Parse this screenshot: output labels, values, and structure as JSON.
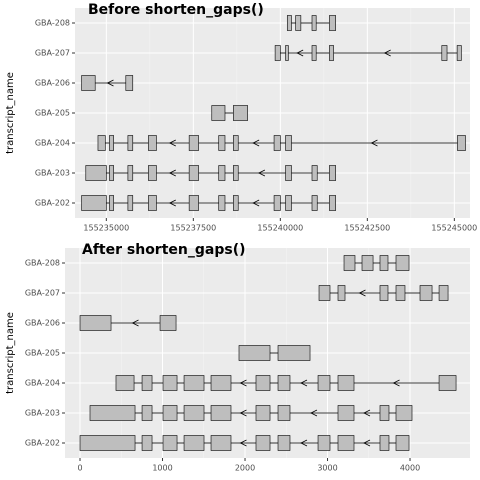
{
  "chart_data": [
    {
      "type": "transcript",
      "title": "Before shorten_gaps()",
      "ylabel": "transcript_name",
      "strand": "-",
      "categories": [
        "GBA-208",
        "GBA-207",
        "GBA-206",
        "GBA-205",
        "GBA-204",
        "GBA-203",
        "GBA-202"
      ],
      "exons": [
        [
          [
            155240200,
            155240320
          ],
          [
            155240440,
            155240590
          ],
          [
            155240910,
            155241030
          ],
          [
            155241410,
            155241590
          ]
        ],
        [
          [
            155239850,
            155240000
          ],
          [
            155240150,
            155240230
          ],
          [
            155240910,
            155241030
          ],
          [
            155241410,
            155241530
          ],
          [
            155244640,
            155244790
          ],
          [
            155245080,
            155245200
          ]
        ],
        [
          [
            155234290,
            155234680
          ],
          [
            155235560,
            155235760
          ]
        ],
        [
          [
            155238030,
            155238410
          ],
          [
            155238650,
            155239060
          ]
        ],
        [
          [
            155234760,
            155234970
          ],
          [
            155235090,
            155235210
          ],
          [
            155235620,
            155235760
          ],
          [
            155236210,
            155236440
          ],
          [
            155237380,
            155237650
          ],
          [
            155238230,
            155238410
          ],
          [
            155238650,
            155238790
          ],
          [
            155239820,
            155240000
          ],
          [
            155240150,
            155240320
          ],
          [
            155245090,
            155245320
          ]
        ],
        [
          [
            155234410,
            155235000
          ],
          [
            155235090,
            155235210
          ],
          [
            155235620,
            155235760
          ],
          [
            155236210,
            155236440
          ],
          [
            155237380,
            155237650
          ],
          [
            155238230,
            155238410
          ],
          [
            155238650,
            155238790
          ],
          [
            155240150,
            155240320
          ],
          [
            155240910,
            155241060
          ],
          [
            155241410,
            155241590
          ]
        ],
        [
          [
            155234290,
            155235000
          ],
          [
            155235090,
            155235210
          ],
          [
            155235620,
            155235760
          ],
          [
            155236210,
            155236440
          ],
          [
            155237380,
            155237650
          ],
          [
            155238230,
            155238410
          ],
          [
            155238650,
            155238790
          ],
          [
            155239820,
            155240000
          ],
          [
            155240150,
            155240320
          ],
          [
            155240910,
            155241060
          ],
          [
            155241410,
            155241590
          ]
        ]
      ],
      "xlim": [
        155234100,
        155245450
      ],
      "xticks": [
        155235000,
        155237500,
        155240000,
        155242500,
        155245000
      ],
      "grid": true
    },
    {
      "type": "transcript",
      "title": "After shorten_gaps()",
      "ylabel": "transcript_name",
      "strand": "-",
      "categories": [
        "GBA-208",
        "GBA-207",
        "GBA-206",
        "GBA-205",
        "GBA-204",
        "GBA-203",
        "GBA-202"
      ],
      "exons": [
        [
          [
            3200,
            3333
          ],
          [
            3418,
            3552
          ],
          [
            3636,
            3733
          ],
          [
            3830,
            3988
          ]
        ],
        [
          [
            2897,
            3030
          ],
          [
            3127,
            3212
          ],
          [
            3636,
            3733
          ],
          [
            3830,
            3939
          ],
          [
            4121,
            4267
          ],
          [
            4352,
            4461
          ]
        ],
        [
          [
            0,
            376
          ],
          [
            970,
            1164
          ]
        ],
        [
          [
            1927,
            2303
          ],
          [
            2400,
            2788
          ]
        ],
        [
          [
            436,
            655
          ],
          [
            752,
            873
          ],
          [
            1006,
            1176
          ],
          [
            1261,
            1503
          ],
          [
            1588,
            1830
          ],
          [
            2133,
            2303
          ],
          [
            2400,
            2545
          ],
          [
            2885,
            3030
          ],
          [
            3127,
            3321
          ],
          [
            4352,
            4558
          ]
        ],
        [
          [
            121,
            667
          ],
          [
            752,
            873
          ],
          [
            1006,
            1176
          ],
          [
            1261,
            1503
          ],
          [
            1588,
            1830
          ],
          [
            2133,
            2303
          ],
          [
            2400,
            2545
          ],
          [
            3127,
            3321
          ],
          [
            3636,
            3745
          ],
          [
            3830,
            4024
          ]
        ],
        [
          [
            0,
            667
          ],
          [
            752,
            873
          ],
          [
            1006,
            1176
          ],
          [
            1261,
            1503
          ],
          [
            1588,
            1830
          ],
          [
            2133,
            2303
          ],
          [
            2400,
            2545
          ],
          [
            2885,
            3030
          ],
          [
            3127,
            3321
          ],
          [
            3636,
            3745
          ],
          [
            3830,
            3988
          ]
        ]
      ],
      "xlim": [
        -182,
        4727
      ],
      "xticks": [
        0,
        1000,
        2000,
        3000,
        4000
      ],
      "grid": true
    }
  ]
}
